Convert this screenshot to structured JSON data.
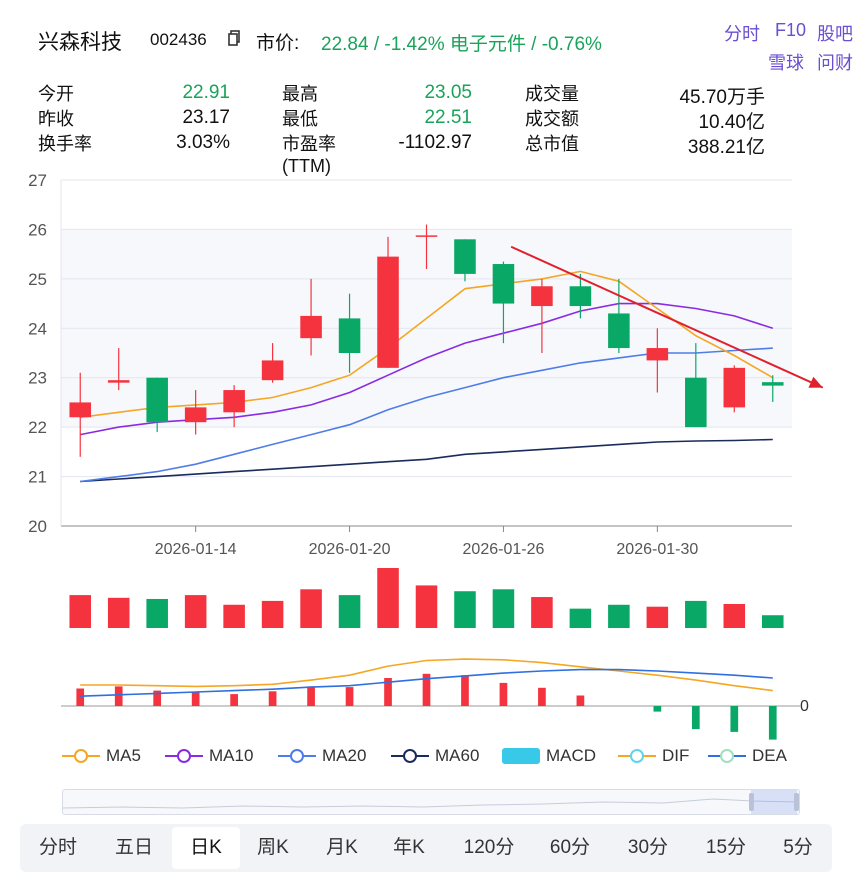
{
  "header": {
    "name": "兴森科技",
    "code": "002436",
    "price_label": "市价:",
    "price_text": "22.84 / -1.42% 电子元件 / -0.76%",
    "links": [
      "分时",
      "F10",
      "股吧",
      "雪球",
      "问财"
    ]
  },
  "stats": [
    {
      "label": "今开",
      "value": "22.91",
      "color": "#1aa35a"
    },
    {
      "label": "昨收",
      "value": "23.17",
      "color": "#111111"
    },
    {
      "label": "换手率",
      "value": "3.03%",
      "color": "#111111"
    },
    {
      "label": "最高",
      "value": "23.05",
      "color": "#1aa35a"
    },
    {
      "label": "最低",
      "value": "22.51",
      "color": "#1aa35a"
    },
    {
      "label": "市盈率\n(TTM)",
      "value": "-1102.97",
      "color": "#111111"
    },
    {
      "label": "成交量",
      "value": "45.70万手",
      "color": "#111111"
    },
    {
      "label": "成交额",
      "value": "10.40亿",
      "color": "#111111"
    },
    {
      "label": "总市值",
      "value": "388.21亿",
      "color": "#111111"
    }
  ],
  "chart_data": {
    "type": "candlestick",
    "y_ticks": [
      "27",
      "26",
      "25",
      "24",
      "23",
      "22",
      "21",
      "20"
    ],
    "ylim": [
      20,
      27
    ],
    "x_labels": [
      "2026-01-14",
      "2026-01-20",
      "2026-01-26",
      "2026-01-30"
    ],
    "x_label_index": [
      3,
      7,
      11,
      15
    ],
    "colors": {
      "up": "#f5333f",
      "down": "#0aa866",
      "ma5": "#f5a623",
      "ma10": "#8a2be2",
      "ma20": "#4f7de8",
      "ma60": "#1a2b5c",
      "dif": "#f5a623",
      "dea": "#2f6fe0"
    },
    "candles": [
      {
        "open": 22.2,
        "close": 22.5,
        "high": 23.1,
        "low": 21.4
      },
      {
        "open": 22.9,
        "close": 22.95,
        "high": 23.6,
        "low": 22.75
      },
      {
        "open": 23.0,
        "close": 22.1,
        "high": 23.0,
        "low": 21.9
      },
      {
        "open": 22.1,
        "close": 22.4,
        "high": 22.75,
        "low": 21.85
      },
      {
        "open": 22.3,
        "close": 22.75,
        "high": 22.85,
        "low": 22.0
      },
      {
        "open": 22.95,
        "close": 23.35,
        "high": 23.7,
        "low": 22.9
      },
      {
        "open": 23.8,
        "close": 24.25,
        "high": 25.0,
        "low": 23.45
      },
      {
        "open": 24.2,
        "close": 23.5,
        "high": 24.7,
        "low": 23.1
      },
      {
        "open": 23.2,
        "close": 25.45,
        "high": 25.85,
        "low": 23.2
      },
      {
        "open": 25.85,
        "close": 25.88,
        "high": 26.1,
        "low": 25.2
      },
      {
        "open": 25.8,
        "close": 25.1,
        "high": 25.8,
        "low": 24.95
      },
      {
        "open": 25.3,
        "close": 24.5,
        "high": 25.35,
        "low": 23.7
      },
      {
        "open": 24.45,
        "close": 24.85,
        "high": 25.0,
        "low": 23.5
      },
      {
        "open": 24.85,
        "close": 24.45,
        "high": 25.1,
        "low": 24.2
      },
      {
        "open": 24.3,
        "close": 23.6,
        "high": 25.0,
        "low": 23.5
      },
      {
        "open": 23.35,
        "close": 23.6,
        "high": 24.0,
        "low": 22.7
      },
      {
        "open": 23.0,
        "close": 22.0,
        "high": 23.7,
        "low": 22.0
      },
      {
        "open": 22.4,
        "close": 23.2,
        "high": 23.25,
        "low": 22.3
      },
      {
        "open": 22.91,
        "close": 22.84,
        "high": 23.05,
        "low": 22.51
      }
    ],
    "ma5": [
      22.2,
      22.3,
      22.4,
      22.45,
      22.5,
      22.6,
      22.8,
      23.05,
      23.6,
      24.2,
      24.8,
      24.9,
      25.0,
      25.15,
      24.95,
      24.4,
      23.85,
      23.45,
      23.0
    ],
    "ma10": [
      21.85,
      22.0,
      22.1,
      22.15,
      22.2,
      22.3,
      22.45,
      22.7,
      23.05,
      23.4,
      23.7,
      23.9,
      24.1,
      24.35,
      24.5,
      24.5,
      24.4,
      24.25,
      24.0
    ],
    "ma20": [
      20.9,
      21.0,
      21.1,
      21.25,
      21.45,
      21.65,
      21.85,
      22.05,
      22.35,
      22.6,
      22.8,
      23.0,
      23.15,
      23.3,
      23.4,
      23.5,
      23.5,
      23.55,
      23.6
    ],
    "ma60": [
      20.9,
      20.95,
      21.0,
      21.05,
      21.1,
      21.15,
      21.2,
      21.25,
      21.3,
      21.35,
      21.45,
      21.5,
      21.55,
      21.6,
      21.65,
      21.7,
      21.72,
      21.73,
      21.75
    ],
    "volume": [
      0.85,
      0.78,
      0.75,
      0.85,
      0.6,
      0.7,
      1.0,
      0.85,
      1.55,
      1.1,
      0.95,
      1.0,
      0.8,
      0.5,
      0.6,
      0.55,
      0.7,
      0.62,
      0.33
    ],
    "macd": [
      0.25,
      0.28,
      0.22,
      0.2,
      0.17,
      0.21,
      0.28,
      0.27,
      0.4,
      0.46,
      0.44,
      0.33,
      0.26,
      0.15,
      0.0,
      -0.08,
      -0.33,
      -0.37,
      -0.48
    ],
    "dif": [
      0.3,
      0.3,
      0.29,
      0.28,
      0.29,
      0.31,
      0.37,
      0.44,
      0.57,
      0.65,
      0.67,
      0.66,
      0.62,
      0.56,
      0.5,
      0.44,
      0.37,
      0.29,
      0.22
    ],
    "dea": [
      0.14,
      0.16,
      0.18,
      0.2,
      0.22,
      0.24,
      0.27,
      0.29,
      0.34,
      0.39,
      0.43,
      0.47,
      0.5,
      0.52,
      0.52,
      0.5,
      0.47,
      0.44,
      0.4
    ],
    "macd_zero_label": "0",
    "trend_arrow": {
      "from_index": 11.2,
      "from_value": 25.65,
      "to_index": 19.3,
      "to_value": 22.8
    },
    "legend": [
      "MA5",
      "MA10",
      "MA20",
      "MA60",
      "MACD",
      "DIF",
      "DEA"
    ]
  },
  "periods": [
    "分时",
    "五日",
    "日K",
    "周K",
    "月K",
    "年K",
    "120分",
    "60分",
    "30分",
    "15分",
    "5分"
  ],
  "active_period": "日K"
}
